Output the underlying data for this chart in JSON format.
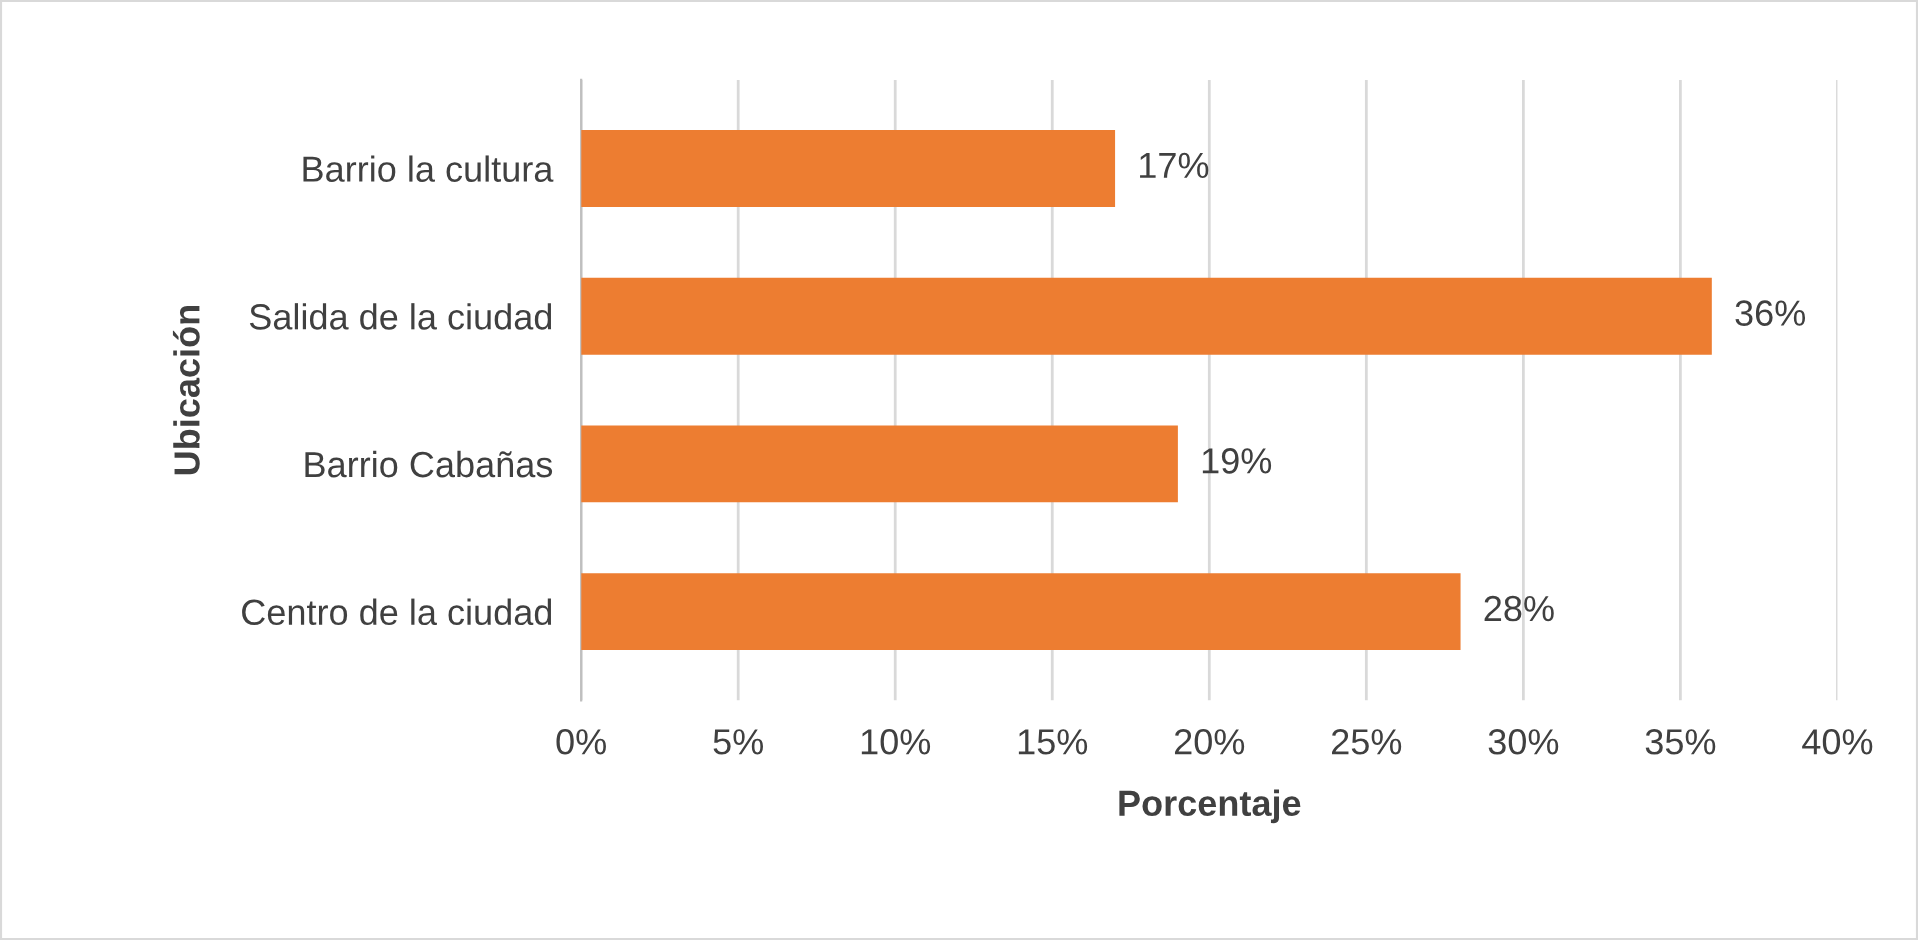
{
  "chart_data": {
    "type": "bar",
    "orientation": "horizontal",
    "xlabel": "Porcentaje",
    "ylabel": "Ubicación",
    "categories": [
      "Barrio la cultura",
      "Salida de la ciudad",
      "Barrio Cabañas",
      "Centro de la ciudad"
    ],
    "values": [
      17,
      36,
      19,
      28
    ],
    "value_labels": [
      "17%",
      "36%",
      "19%",
      "28%"
    ],
    "color": "#ed7d31",
    "xlim": [
      0,
      40
    ],
    "xticks": [
      {
        "value": 0,
        "label": "0%"
      },
      {
        "value": 5,
        "label": "5%"
      },
      {
        "value": 10,
        "label": "10%"
      },
      {
        "value": 15,
        "label": "15%"
      },
      {
        "value": 20,
        "label": "20%"
      },
      {
        "value": 25,
        "label": "25%"
      },
      {
        "value": 30,
        "label": "30%"
      },
      {
        "value": 35,
        "label": "35%"
      },
      {
        "value": 40,
        "label": "40%"
      }
    ],
    "grid": "x",
    "legend": false
  }
}
